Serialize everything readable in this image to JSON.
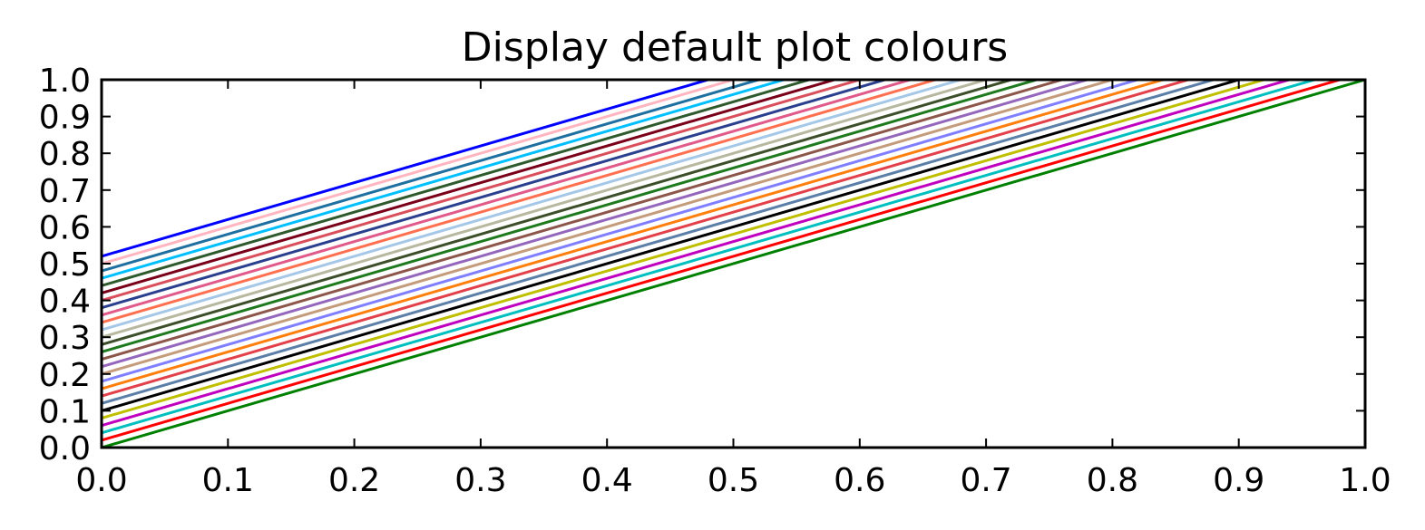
{
  "chart_data": {
    "type": "line",
    "title": "Display default plot colours",
    "xlabel": "",
    "ylabel": "",
    "xlim": [
      0.0,
      1.0
    ],
    "ylim": [
      0.0,
      1.0
    ],
    "x_ticks": [
      "0.0",
      "0.1",
      "0.2",
      "0.3",
      "0.4",
      "0.5",
      "0.6",
      "0.7",
      "0.8",
      "0.9",
      "1.0"
    ],
    "y_ticks": [
      "0.0",
      "0.1",
      "0.2",
      "0.3",
      "0.4",
      "0.5",
      "0.6",
      "0.7",
      "0.8",
      "0.9",
      "1.0"
    ],
    "grid": false,
    "legend": "none",
    "series": [
      {
        "color": "#008000",
        "x": [
          0.0,
          1.0
        ],
        "y": [
          0.0,
          1.0
        ]
      },
      {
        "color": "#ff0000",
        "x": [
          0.0,
          1.0
        ],
        "y": [
          0.02,
          1.02
        ]
      },
      {
        "color": "#00bfbf",
        "x": [
          0.0,
          1.0
        ],
        "y": [
          0.04,
          1.04
        ]
      },
      {
        "color": "#bf00bf",
        "x": [
          0.0,
          1.0
        ],
        "y": [
          0.06,
          1.06
        ]
      },
      {
        "color": "#bfbf00",
        "x": [
          0.0,
          1.0
        ],
        "y": [
          0.08,
          1.08
        ]
      },
      {
        "color": "#000000",
        "x": [
          0.0,
          1.0
        ],
        "y": [
          0.1,
          1.1
        ]
      },
      {
        "color": "#5b7fa8",
        "x": [
          0.0,
          1.0
        ],
        "y": [
          0.12,
          1.12
        ]
      },
      {
        "color": "#e2404a",
        "x": [
          0.0,
          1.0
        ],
        "y": [
          0.14,
          1.14
        ]
      },
      {
        "color": "#ff7f0e",
        "x": [
          0.0,
          1.0
        ],
        "y": [
          0.16,
          1.16
        ]
      },
      {
        "color": "#7f7fff",
        "x": [
          0.0,
          1.0
        ],
        "y": [
          0.18,
          1.18
        ]
      },
      {
        "color": "#c49c7c",
        "x": [
          0.0,
          1.0
        ],
        "y": [
          0.2,
          1.2
        ]
      },
      {
        "color": "#9467bd",
        "x": [
          0.0,
          1.0
        ],
        "y": [
          0.22,
          1.22
        ]
      },
      {
        "color": "#8c564b",
        "x": [
          0.0,
          1.0
        ],
        "y": [
          0.24,
          1.24
        ]
      },
      {
        "color": "#1f7a1f",
        "x": [
          0.0,
          1.0
        ],
        "y": [
          0.26,
          1.26
        ]
      },
      {
        "color": "#3d4f2a",
        "x": [
          0.0,
          1.0
        ],
        "y": [
          0.28,
          1.28
        ]
      },
      {
        "color": "#b8b8a0",
        "x": [
          0.0,
          1.0
        ],
        "y": [
          0.3,
          1.3
        ]
      },
      {
        "color": "#a6c8e8",
        "x": [
          0.0,
          1.0
        ],
        "y": [
          0.32,
          1.32
        ]
      },
      {
        "color": "#ff7050",
        "x": [
          0.0,
          1.0
        ],
        "y": [
          0.34,
          1.34
        ]
      },
      {
        "color": "#e05a8a",
        "x": [
          0.0,
          1.0
        ],
        "y": [
          0.36,
          1.36
        ]
      },
      {
        "color": "#2b3f8f",
        "x": [
          0.0,
          1.0
        ],
        "y": [
          0.38,
          1.38
        ]
      },
      {
        "color": "#d94f5c",
        "x": [
          0.0,
          1.0
        ],
        "y": [
          0.4,
          1.4
        ]
      },
      {
        "color": "#7a0019",
        "x": [
          0.0,
          1.0
        ],
        "y": [
          0.42,
          1.42
        ]
      },
      {
        "color": "#2e5a2e",
        "x": [
          0.0,
          1.0
        ],
        "y": [
          0.44,
          1.44
        ]
      },
      {
        "color": "#00bfff",
        "x": [
          0.0,
          1.0
        ],
        "y": [
          0.46,
          1.46
        ]
      },
      {
        "color": "#1f6fa0",
        "x": [
          0.0,
          1.0
        ],
        "y": [
          0.48,
          1.48
        ]
      },
      {
        "color": "#ffb6c1",
        "x": [
          0.0,
          1.0
        ],
        "y": [
          0.5,
          1.5
        ]
      },
      {
        "color": "#0000ff",
        "x": [
          0.0,
          1.0
        ],
        "y": [
          0.52,
          1.52
        ]
      }
    ]
  }
}
